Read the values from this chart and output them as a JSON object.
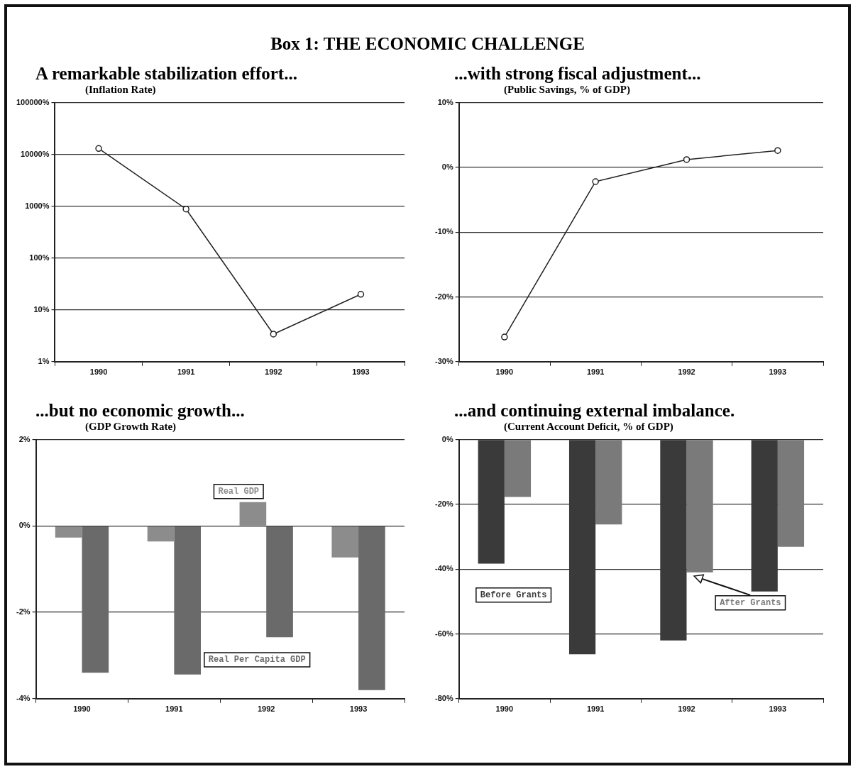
{
  "chart_data": [
    {
      "type": "line",
      "title": "A remarkable stabilization effort...",
      "subtitle": "(Inflation Rate)",
      "annotations": [
        "Box 1:  THE ECONOMIC CHALLENGE"
      ],
      "categories": [
        "1990",
        "1991",
        "1992",
        "1993"
      ],
      "series": [
        {
          "color": "#222222",
          "values": [
            13000,
            880,
            3.4,
            20
          ]
        }
      ],
      "log": "y",
      "ylim": [
        1,
        100000
      ],
      "yticks": [
        {
          "value": 1,
          "label": "1%"
        },
        {
          "value": 10,
          "label": "10%"
        },
        {
          "value": 100,
          "label": "100%"
        },
        {
          "value": 1000,
          "label": "1000%"
        },
        {
          "value": 10000,
          "label": "10000%"
        },
        {
          "value": 100000,
          "label": "100000%"
        }
      ],
      "grid": "y",
      "marker": "circle",
      "legend": false
    },
    {
      "type": "line",
      "title": "...with strong fiscal adjustment...",
      "subtitle": "(Public Savings, % of GDP)",
      "categories": [
        "1990",
        "1991",
        "1992",
        "1993"
      ],
      "series": [
        {
          "color": "#222222",
          "values": [
            -26.2,
            -2.2,
            1.2,
            2.6
          ]
        }
      ],
      "ylim": [
        -30,
        10
      ],
      "yticks": [
        {
          "value": -30,
          "label": "-30%"
        },
        {
          "value": -20,
          "label": "-20%"
        },
        {
          "value": -10,
          "label": "-10%"
        },
        {
          "value": 0,
          "label": "0%"
        },
        {
          "value": 10,
          "label": "10%"
        }
      ],
      "grid": "y",
      "marker": "circle",
      "legend": false
    },
    {
      "type": "bar",
      "title": "...but no economic growth...",
      "subtitle": "(GDP Growth Rate)",
      "categories": [
        "1990",
        "1991",
        "1992",
        "1993"
      ],
      "series": [
        {
          "name": "Real GDP",
          "color": "#8c8c8c",
          "values": [
            -0.27,
            -0.36,
            0.55,
            -0.73
          ]
        },
        {
          "name": "Real Per Capita GDP",
          "color": "#6a6a6a",
          "values": [
            -3.4,
            -3.44,
            -2.58,
            -3.8
          ]
        }
      ],
      "ylim": [
        -4,
        2
      ],
      "yticks": [
        {
          "value": -4,
          "label": "-4%"
        },
        {
          "value": -2,
          "label": "-2%"
        },
        {
          "value": 0,
          "label": "0%"
        },
        {
          "value": 2,
          "label": "2%"
        }
      ],
      "grid": "y",
      "legend": false
    },
    {
      "type": "bar",
      "title": "...and continuing external imbalance.",
      "subtitle": "(Current Account Deficit, % of GDP)",
      "categories": [
        "1990",
        "1991",
        "1992",
        "1993"
      ],
      "series": [
        {
          "name": "Before Grants",
          "color": "#3a3a3a",
          "values": [
            -38.3,
            -66.3,
            -62,
            -46.9
          ]
        },
        {
          "name": "After Grants",
          "color": "#7a7a7a",
          "values": [
            -17.7,
            -26.2,
            -41,
            -33.1
          ]
        }
      ],
      "ylim": [
        -80,
        0
      ],
      "yticks": [
        {
          "value": -80,
          "label": "-80%"
        },
        {
          "value": -60,
          "label": "-60%"
        },
        {
          "value": -40,
          "label": "-40%"
        },
        {
          "value": -20,
          "label": "-20%"
        },
        {
          "value": 0,
          "label": "0%"
        }
      ],
      "grid": "y",
      "legend": false
    }
  ]
}
